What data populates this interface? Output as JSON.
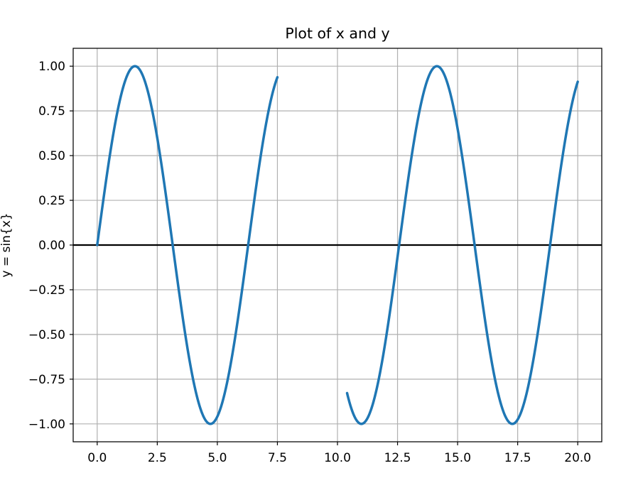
{
  "chart_data": {
    "type": "line",
    "title": "Plot of x and y",
    "xlabel": "",
    "ylabel": "y = sin{x}",
    "xlim": [
      -1.0,
      21.0
    ],
    "ylim": [
      -1.1,
      1.1
    ],
    "grid": true,
    "x_ticks": [
      0.0,
      2.5,
      5.0,
      7.5,
      10.0,
      12.5,
      15.0,
      17.5,
      20.0
    ],
    "x_tick_labels": [
      "0.0",
      "2.5",
      "5.0",
      "7.5",
      "10.0",
      "12.5",
      "15.0",
      "17.5",
      "20.0"
    ],
    "y_ticks": [
      1.0,
      0.75,
      0.5,
      0.25,
      0.0,
      -0.25,
      -0.5,
      -0.75,
      -1.0
    ],
    "y_tick_labels": [
      "1.00",
      "0.75",
      "0.50",
      "0.25",
      "0.00",
      "−0.25",
      "−0.50",
      "−0.75",
      "−1.00"
    ],
    "horizontal_line": {
      "y": 0.0,
      "color": "#000000"
    },
    "series": [
      {
        "function": "sin(x)",
        "color": "#1f77b4",
        "segments": [
          {
            "x_start": 0.0,
            "x_end": 7.5
          },
          {
            "x_start": 10.4,
            "x_end": 20.0
          }
        ]
      }
    ]
  }
}
